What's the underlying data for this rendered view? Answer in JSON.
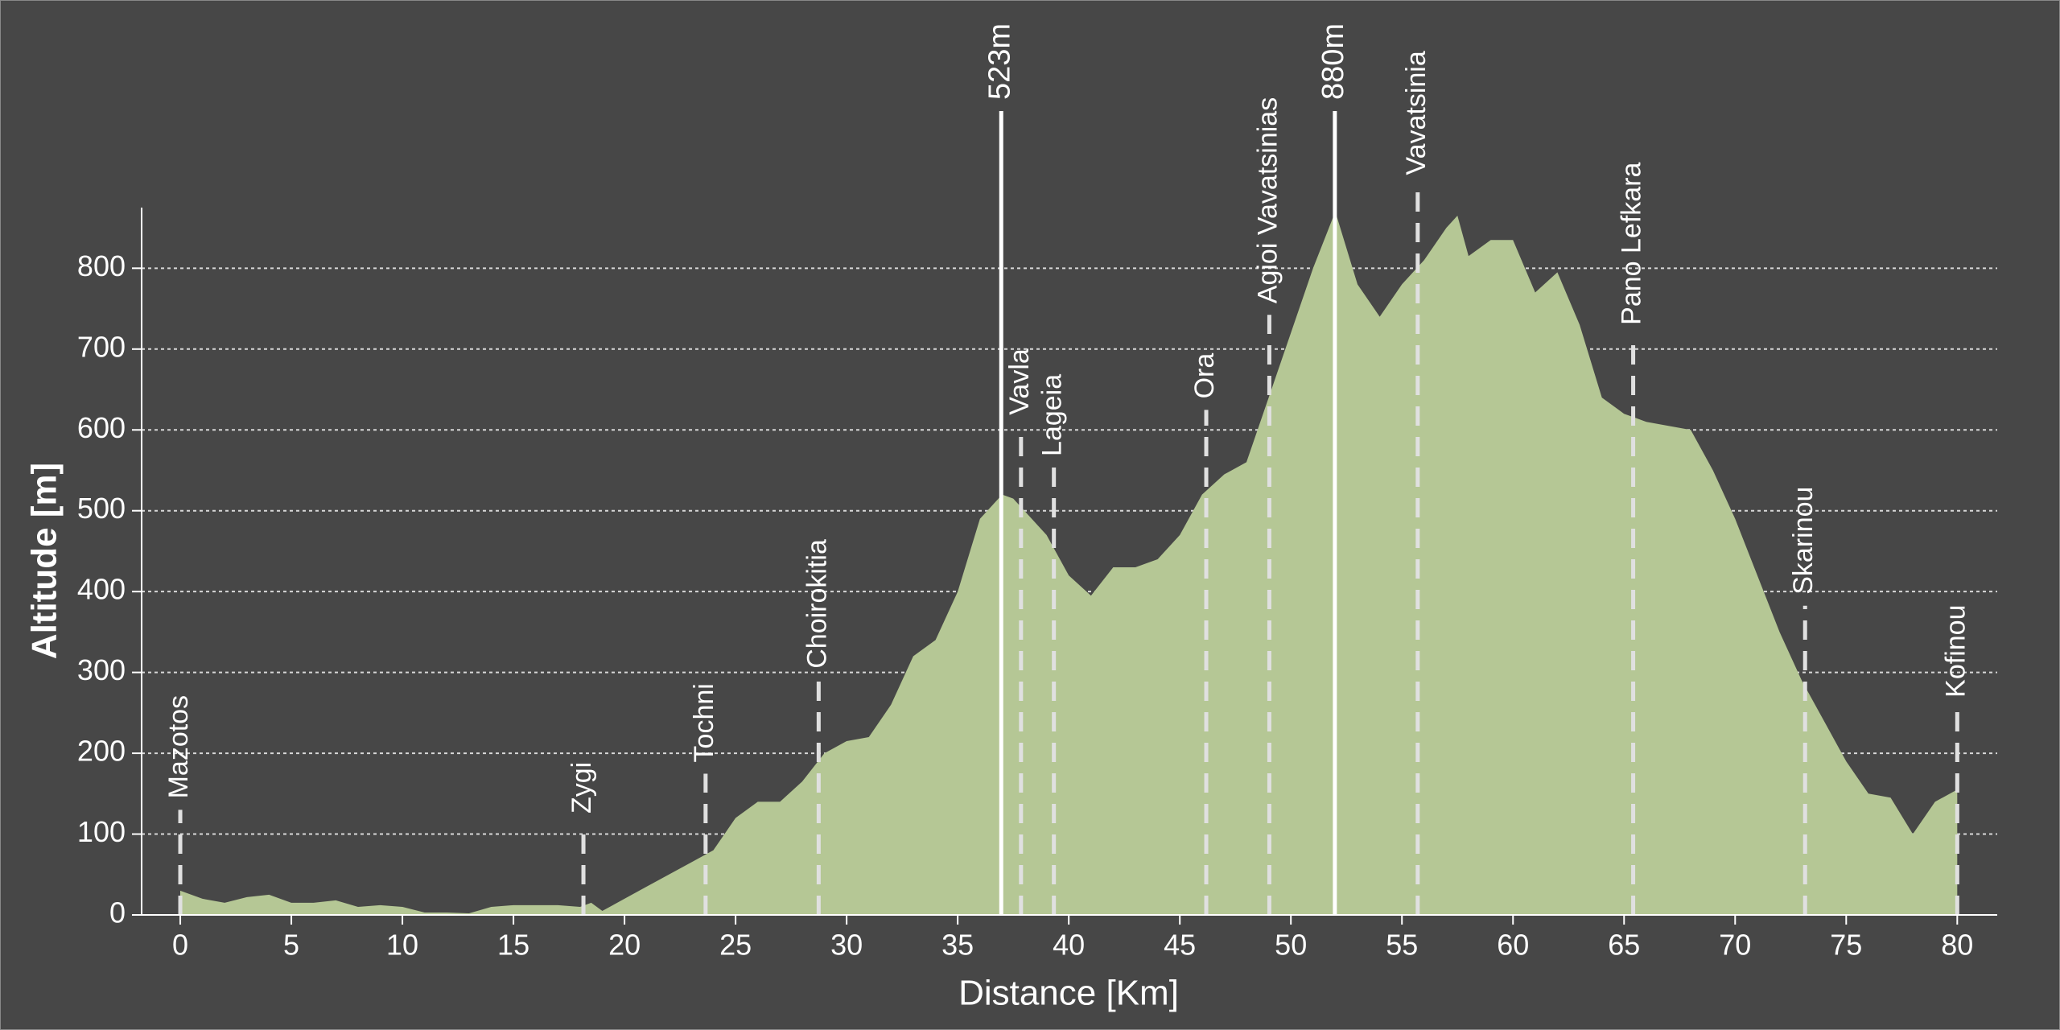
{
  "chart_data": {
    "type": "area",
    "xlabel": "Distance [Km]",
    "ylabel": "Altitude [m]",
    "x": [
      0,
      1,
      2,
      3,
      4,
      5,
      6,
      7,
      8,
      9,
      10,
      11,
      12,
      13,
      14,
      15,
      16,
      17,
      18,
      18.5,
      19,
      20,
      21,
      22,
      23,
      24,
      25,
      26,
      27,
      28,
      29,
      30,
      31,
      32,
      33,
      34,
      35,
      36,
      37,
      37.5,
      38,
      39,
      40,
      41,
      42,
      43,
      44,
      45,
      46,
      47,
      48,
      49,
      50,
      51,
      52,
      53,
      54,
      55,
      56,
      57,
      57.5,
      58,
      59,
      60,
      61,
      62,
      63,
      64,
      65,
      66,
      67,
      68,
      69,
      70,
      71,
      72,
      73,
      74,
      75,
      76,
      77,
      78,
      79,
      80
    ],
    "values": [
      30,
      20,
      15,
      22,
      25,
      15,
      15,
      18,
      10,
      12,
      10,
      3,
      3,
      2,
      10,
      12,
      12,
      12,
      10,
      15,
      5,
      20,
      35,
      50,
      65,
      80,
      120,
      140,
      140,
      165,
      200,
      215,
      220,
      260,
      320,
      340,
      400,
      490,
      520,
      515,
      500,
      470,
      420,
      395,
      430,
      430,
      440,
      470,
      520,
      545,
      560,
      640,
      720,
      800,
      870,
      780,
      740,
      780,
      810,
      850,
      865,
      815,
      835,
      835,
      770,
      795,
      730,
      640,
      620,
      610,
      605,
      600,
      550,
      490,
      420,
      350,
      290,
      240,
      190,
      150,
      145,
      100,
      140,
      155
    ],
    "color": "#b5c795",
    "xlim": [
      -1.74,
      81.8
    ],
    "ylim": [
      0,
      875
    ],
    "xticks": [
      0,
      5,
      10,
      15,
      20,
      25,
      30,
      35,
      40,
      45,
      50,
      55,
      60,
      65,
      70,
      75,
      80
    ],
    "yticks": [
      0,
      100,
      200,
      300,
      400,
      500,
      600,
      700,
      800
    ],
    "grid": true,
    "places": [
      {
        "name": "Mazotos",
        "x": 0
      },
      {
        "name": "Zygi",
        "x": 18.15
      },
      {
        "name": "Tochni",
        "x": 23.65
      },
      {
        "name": "Choirokitia",
        "x": 28.74
      },
      {
        "name": "Vavla",
        "x": 37.85
      },
      {
        "name": "Lageia",
        "x": 39.33
      },
      {
        "name": "Ora",
        "x": 46.19
      },
      {
        "name": "Agioi Vavatsinias",
        "x": 49.03
      },
      {
        "name": "Vavatsinia",
        "x": 55.71
      },
      {
        "name": "Pano Lefkara",
        "x": 65.41
      },
      {
        "name": "Skarinou",
        "x": 73.15
      },
      {
        "name": "Kofinou",
        "x": 80
      }
    ],
    "peaks": [
      {
        "x": 36.96,
        "value": 523,
        "label": "523m"
      },
      {
        "x": 51.98,
        "value": 880,
        "label": "880m"
      }
    ]
  }
}
